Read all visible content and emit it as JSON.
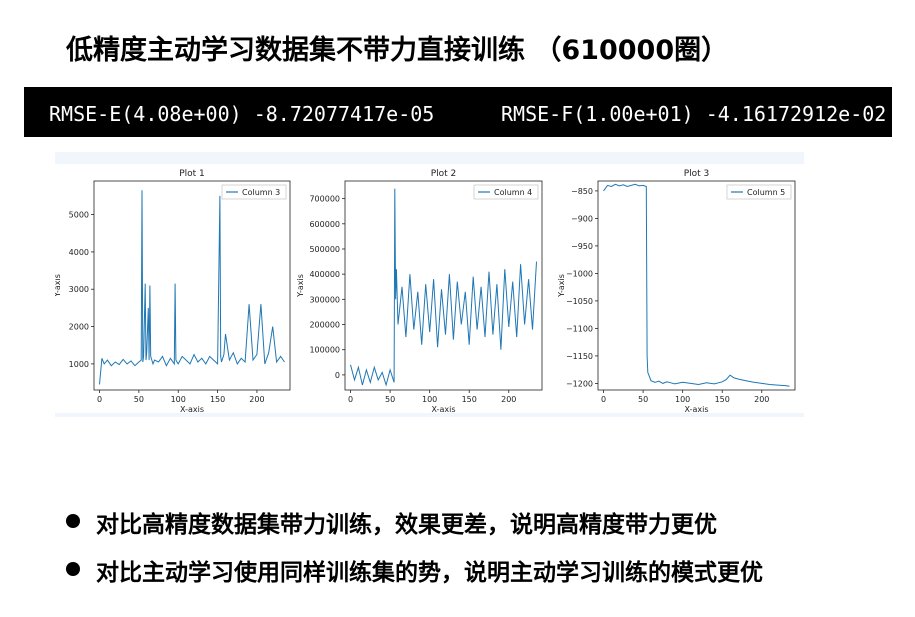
{
  "slide": {
    "title": "低精度主动学习数据集不带力直接训练 （610000圈）",
    "banner": {
      "left": "RMSE-E(4.08e+00) -8.72077417e-05",
      "right": "RMSE-F(1.00e+01) -4.16172912e-02"
    },
    "bullets": [
      "对比高精度数据集带力训练，效果更差，说明高精度带力更优",
      "对比主动学习使用同样训练集的势，说明主动学习训练的模式更优"
    ],
    "colors": {
      "line": "#1f77b4",
      "banner_bg": "#000000",
      "figure_strip": "#f0f6fc"
    }
  },
  "chart_data": [
    {
      "type": "line",
      "title": "Plot 1",
      "xlabel": "X-axis",
      "ylabel": "Y-axis",
      "legend": "Column 3",
      "legend_position": "top-right",
      "xlim": [
        -7,
        242
      ],
      "ylim": [
        300,
        5900
      ],
      "xticks": [
        0,
        50,
        100,
        150,
        200
      ],
      "yticks": [
        1000,
        2000,
        3000,
        4000,
        5000
      ],
      "series": [
        {
          "name": "Column 3",
          "x": [
            0,
            3,
            6,
            10,
            15,
            20,
            25,
            30,
            35,
            40,
            45,
            50,
            53,
            54,
            55,
            56,
            58,
            59,
            60,
            62,
            63,
            64,
            65,
            68,
            70,
            75,
            80,
            85,
            90,
            95,
            96,
            97,
            100,
            105,
            110,
            115,
            120,
            125,
            130,
            135,
            140,
            145,
            150,
            153,
            154,
            155,
            158,
            160,
            165,
            170,
            175,
            180,
            185,
            190,
            195,
            200,
            205,
            210,
            215,
            220,
            225,
            230,
            235
          ],
          "y": [
            450,
            1150,
            1000,
            1100,
            950,
            1050,
            980,
            1120,
            1000,
            1080,
            950,
            1050,
            1100,
            5650,
            1050,
            1200,
            3150,
            1100,
            1300,
            2500,
            1100,
            3100,
            1200,
            1000,
            1100,
            1050,
            1200,
            950,
            1150,
            1000,
            3150,
            1100,
            1000,
            1200,
            1100,
            1000,
            1250,
            1050,
            1150,
            1000,
            1200,
            1100,
            1000,
            5500,
            1200,
            1050,
            1250,
            1800,
            1100,
            1300,
            1000,
            1150,
            1050,
            2600,
            1100,
            1250,
            2600,
            1000,
            1300,
            2000,
            1050,
            1200,
            1050
          ]
        }
      ]
    },
    {
      "type": "line",
      "title": "Plot 2",
      "xlabel": "X-axis",
      "ylabel": "Y-axis",
      "legend": "Column 4",
      "legend_position": "top-right",
      "xlim": [
        -7,
        242
      ],
      "ylim": [
        -60000,
        770000
      ],
      "xticks": [
        0,
        50,
        100,
        150,
        200
      ],
      "yticks": [
        0,
        100000,
        200000,
        300000,
        400000,
        500000,
        600000,
        700000
      ],
      "series": [
        {
          "name": "Column 4",
          "x": [
            0,
            5,
            10,
            15,
            20,
            25,
            30,
            35,
            40,
            45,
            50,
            55,
            56,
            57,
            58,
            60,
            65,
            70,
            75,
            80,
            85,
            90,
            95,
            100,
            105,
            110,
            115,
            120,
            125,
            130,
            135,
            140,
            145,
            150,
            155,
            160,
            165,
            170,
            175,
            180,
            185,
            190,
            195,
            200,
            205,
            210,
            215,
            220,
            225,
            230,
            235
          ],
          "y": [
            40000,
            -20000,
            30000,
            -40000,
            20000,
            -30000,
            30000,
            -20000,
            10000,
            -40000,
            20000,
            -30000,
            740000,
            300000,
            420000,
            200000,
            350000,
            150000,
            400000,
            180000,
            330000,
            120000,
            360000,
            170000,
            380000,
            110000,
            340000,
            160000,
            400000,
            140000,
            370000,
            200000,
            330000,
            120000,
            390000,
            180000,
            350000,
            150000,
            410000,
            160000,
            360000,
            100000,
            420000,
            190000,
            370000,
            150000,
            440000,
            200000,
            380000,
            180000,
            450000
          ]
        }
      ]
    },
    {
      "type": "line",
      "title": "Plot 3",
      "xlabel": "X-axis",
      "ylabel": "Y-axis",
      "legend": "Column 5",
      "legend_position": "top-right",
      "xlim": [
        -7,
        242
      ],
      "ylim": [
        -1212,
        -832
      ],
      "xticks": [
        0,
        50,
        100,
        150,
        200
      ],
      "yticks": [
        -850,
        -900,
        -950,
        -1000,
        -1050,
        -1100,
        -1150,
        -1200
      ],
      "series": [
        {
          "name": "Column 5",
          "x": [
            0,
            5,
            10,
            15,
            20,
            25,
            30,
            35,
            40,
            45,
            50,
            54,
            55,
            56,
            60,
            65,
            70,
            75,
            80,
            85,
            90,
            100,
            110,
            120,
            130,
            140,
            150,
            155,
            160,
            165,
            170,
            180,
            190,
            200,
            210,
            220,
            230,
            235
          ],
          "y": [
            -850,
            -840,
            -842,
            -838,
            -841,
            -839,
            -842,
            -840,
            -838,
            -841,
            -840,
            -842,
            -1150,
            -1180,
            -1195,
            -1198,
            -1196,
            -1200,
            -1197,
            -1199,
            -1201,
            -1198,
            -1200,
            -1202,
            -1199,
            -1201,
            -1197,
            -1193,
            -1185,
            -1190,
            -1192,
            -1195,
            -1198,
            -1200,
            -1202,
            -1203,
            -1204,
            -1205
          ]
        }
      ]
    }
  ]
}
